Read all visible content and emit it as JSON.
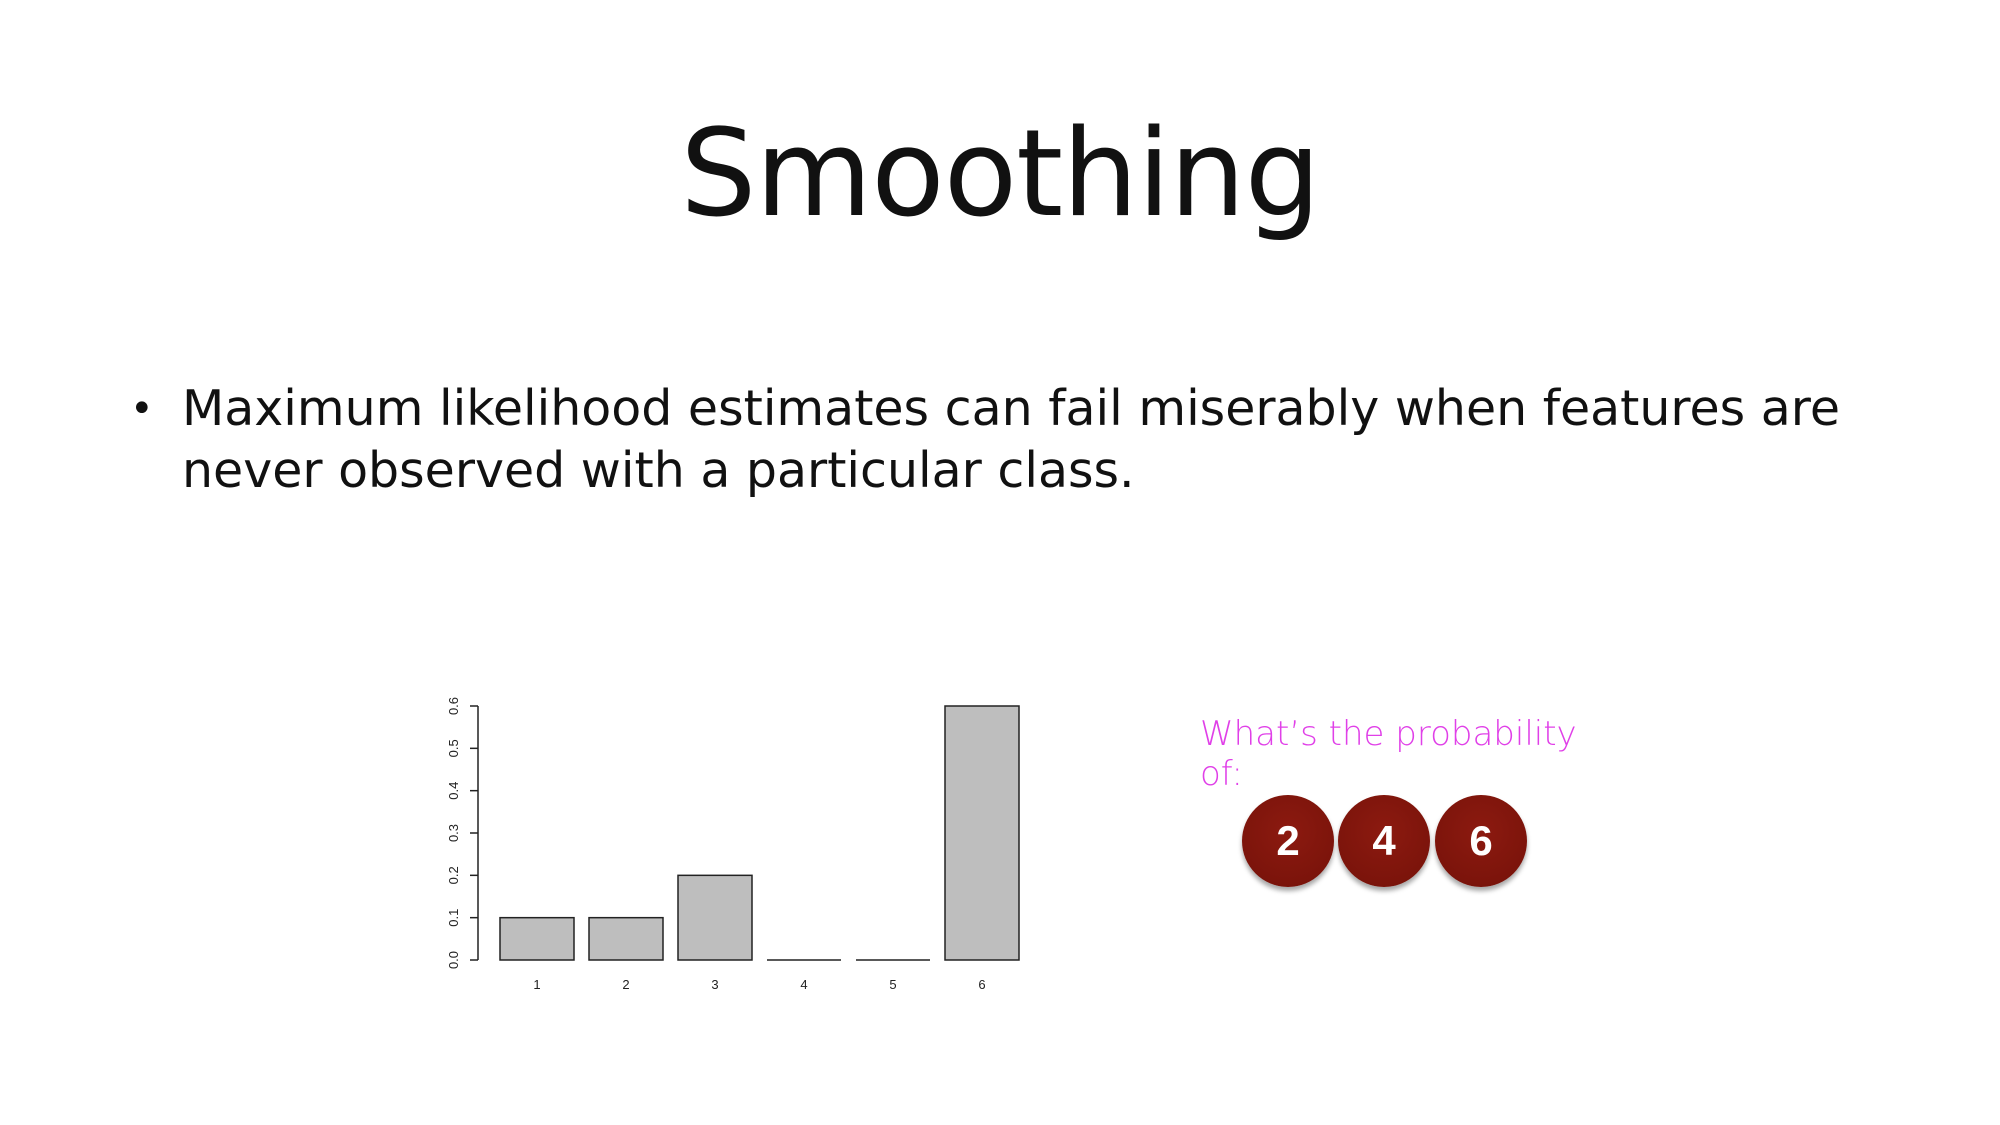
{
  "slide": {
    "title": "Smoothing",
    "bullet": "Maximum likelihood estimates can fail miserably when features are never observed with a particular class.",
    "question": "What’s the probability of:",
    "balls": [
      "2",
      "4",
      "6"
    ],
    "colors": {
      "question": "#e040e8",
      "ball": "#7c140b",
      "bar_fill": "#bebebe"
    }
  },
  "chart_data": {
    "type": "bar",
    "categories": [
      "1",
      "2",
      "3",
      "4",
      "5",
      "6"
    ],
    "values": [
      0.1,
      0.1,
      0.2,
      0.0,
      0.0,
      0.6
    ],
    "title": "",
    "xlabel": "",
    "ylabel": "",
    "ylim": [
      0,
      0.6
    ],
    "yticks": [
      "0.0",
      "0.1",
      "0.2",
      "0.3",
      "0.4",
      "0.5",
      "0.6"
    ],
    "grid": false
  }
}
